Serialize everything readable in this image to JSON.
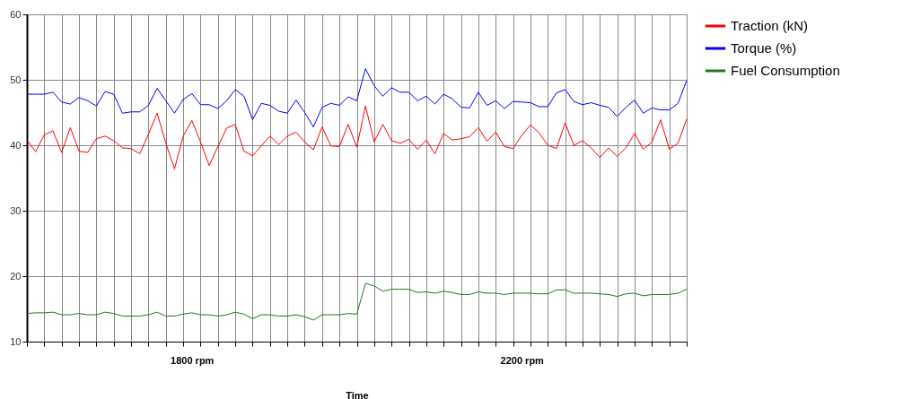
{
  "chart_data": {
    "type": "line",
    "xlabel": "Time",
    "categories": [
      null,
      null,
      null,
      null,
      null,
      null,
      null,
      null,
      null,
      null,
      null,
      null,
      null,
      null,
      null,
      null,
      null,
      null,
      null,
      "1800 rpm",
      null,
      null,
      null,
      null,
      null,
      null,
      null,
      null,
      null,
      null,
      null,
      null,
      null,
      null,
      null,
      null,
      null,
      null,
      null,
      null,
      null,
      null,
      null,
      null,
      null,
      null,
      null,
      null,
      null,
      null,
      null,
      null,
      null,
      null,
      null,
      null,
      null,
      "2200 rpm",
      null,
      null,
      null,
      null,
      null,
      null,
      null,
      null,
      null,
      null,
      null,
      null,
      null,
      null,
      null,
      null,
      null,
      null,
      null
    ],
    "ylim": [
      10,
      60
    ],
    "yticks": [
      10,
      20,
      30,
      40,
      50,
      60
    ],
    "grid": true,
    "legend": "right",
    "marker": "none",
    "line_style": "solid",
    "series": [
      {
        "name": "Traction (kN)",
        "color": "#ff0000",
        "values": [
          40.8,
          39.0,
          41.6,
          42.2,
          38.9,
          42.7,
          39.1,
          38.9,
          41.0,
          41.4,
          40.7,
          39.6,
          39.5,
          38.7,
          41.7,
          44.9,
          40.3,
          36.4,
          41.4,
          43.8,
          40.5,
          36.9,
          39.8,
          42.6,
          43.2,
          39.1,
          38.4,
          39.9,
          41.4,
          40.1,
          41.4,
          42.0,
          40.5,
          39.3,
          42.8,
          39.9,
          39.8,
          43.2,
          39.7,
          46.0,
          40.5,
          43.2,
          40.7,
          40.3,
          40.9,
          39.4,
          40.8,
          38.7,
          41.8,
          40.8,
          41.0,
          41.3,
          42.7,
          40.6,
          42.0,
          39.8,
          39.5,
          41.5,
          43.1,
          41.9,
          40.0,
          39.5,
          43.4,
          40.0,
          40.7,
          39.6,
          38.1,
          39.6,
          38.3,
          39.6,
          41.8,
          39.4,
          40.5,
          43.9,
          39.4,
          40.3,
          44.0
        ]
      },
      {
        "name": "Torque (%)",
        "color": "#0000ff",
        "values": [
          47.8,
          47.8,
          47.8,
          48.1,
          46.6,
          46.3,
          47.3,
          46.8,
          46.0,
          48.2,
          47.8,
          44.9,
          45.1,
          45.1,
          46.1,
          48.7,
          46.8,
          44.9,
          47.0,
          47.9,
          46.2,
          46.2,
          45.6,
          46.8,
          48.5,
          47.5,
          43.9,
          46.4,
          46.1,
          45.2,
          44.9,
          46.9,
          45.0,
          42.8,
          45.8,
          46.4,
          46.1,
          47.4,
          46.8,
          51.7,
          49.1,
          47.5,
          48.8,
          48.1,
          48.1,
          46.8,
          47.5,
          46.3,
          47.8,
          47.1,
          45.8,
          45.7,
          48.1,
          46.1,
          46.8,
          45.6,
          46.7,
          46.6,
          46.5,
          45.9,
          45.9,
          48.0,
          48.5,
          46.7,
          46.2,
          46.5,
          46.1,
          45.8,
          44.4,
          45.8,
          46.9,
          44.9,
          45.7,
          45.4,
          45.4,
          46.4,
          49.9
        ]
      },
      {
        "name": "Fuel Consumption",
        "color": "#1e7a1e",
        "values": [
          14.3,
          14.4,
          14.4,
          14.5,
          14.1,
          14.1,
          14.3,
          14.1,
          14.1,
          14.5,
          14.3,
          13.9,
          13.9,
          13.9,
          14.1,
          14.5,
          13.9,
          13.9,
          14.2,
          14.4,
          14.1,
          14.1,
          13.9,
          14.1,
          14.5,
          14.2,
          13.5,
          14.1,
          14.1,
          13.9,
          13.9,
          14.1,
          13.8,
          13.3,
          14.1,
          14.1,
          14.1,
          14.3,
          14.2,
          18.9,
          18.5,
          17.7,
          18.0,
          18.0,
          18.0,
          17.5,
          17.6,
          17.4,
          17.7,
          17.5,
          17.2,
          17.2,
          17.6,
          17.4,
          17.4,
          17.2,
          17.4,
          17.4,
          17.4,
          17.3,
          17.3,
          17.9,
          17.9,
          17.4,
          17.4,
          17.4,
          17.3,
          17.2,
          16.9,
          17.3,
          17.4,
          17.0,
          17.2,
          17.2,
          17.2,
          17.4,
          18.0
        ]
      }
    ]
  }
}
